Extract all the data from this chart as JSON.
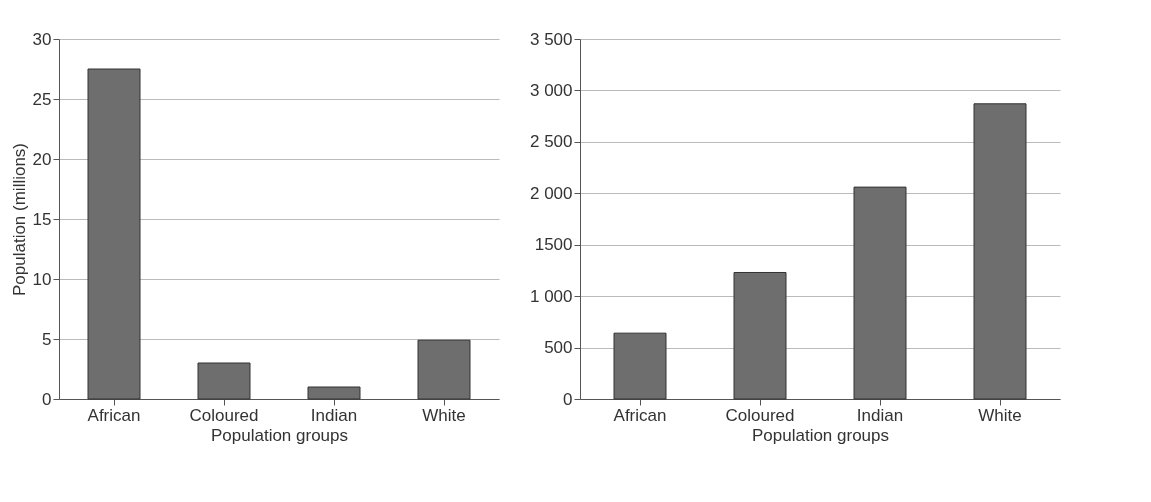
{
  "chart_data": [
    {
      "type": "bar",
      "xlabel": "Population groups",
      "ylabel": "Population (millions)",
      "categories": [
        "African",
        "Coloured",
        "Indian",
        "White"
      ],
      "values": [
        27.5,
        3,
        1,
        4.9
      ],
      "color": "#6e6e6e",
      "ylim": [
        0,
        30
      ],
      "yticks": [
        0,
        5,
        10,
        15,
        20,
        25,
        30
      ],
      "grid": "y"
    },
    {
      "type": "bar",
      "xlabel": "Population groups",
      "categories": [
        "African",
        "Coloured",
        "Indian",
        "White"
      ],
      "values": [
        640,
        1230,
        2060,
        2870
      ],
      "color": "#6e6e6e",
      "ylim": [
        0,
        3500
      ],
      "yticks": [
        0,
        500,
        {
          "value": 1000,
          "label": "1 000"
        },
        1500,
        {
          "value": 2000,
          "label": "2 000"
        },
        {
          "value": 2500,
          "label": "2 500"
        },
        {
          "value": 3000,
          "label": "3 000"
        },
        {
          "value": 3500,
          "label": "3 500"
        }
      ],
      "grid": "y"
    }
  ]
}
